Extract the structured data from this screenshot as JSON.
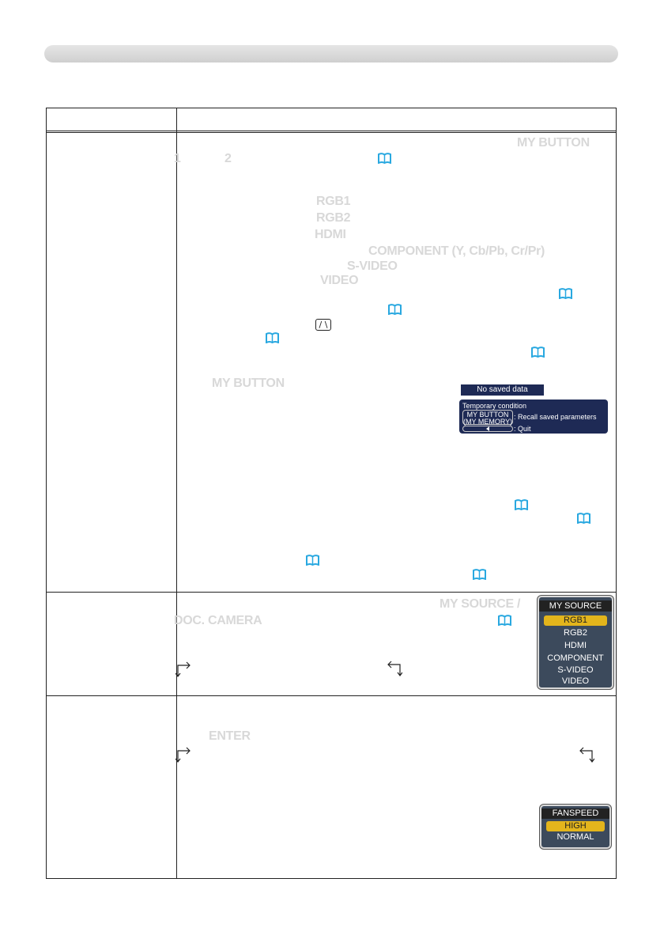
{
  "text": {
    "mybutton_head": "MY BUTTON",
    "num_1": "1",
    "num_2": "2",
    "rgb1": "RGB1",
    "rgb2": "RGB2",
    "hdmi": "HDMI",
    "component": "COMPONENT (Y, Cb/Pb, Cr/Pr)",
    "svideo": "S-VIDEO",
    "video": "VIDEO",
    "mybutton_2": "MY BUTTON",
    "mysource": "MY SOURCE /",
    "doccamera": "DOC. CAMERA",
    "enter": "ENTER"
  },
  "icons": {
    "book": "manual-reference-icon",
    "arrow_down": "down-arrow-icon",
    "arrow_up": "up-arrow-icon",
    "aspect": "aspect-button-icon"
  },
  "osd_memory": {
    "bar": "No saved data",
    "title": "Temporary condition",
    "btn1_line1": "MY BUTTON",
    "btn1_line2": "(MY MEMORY)",
    "btn1_desc": ": Recall saved parameters",
    "btn2_desc": ": Quit"
  },
  "menu_source": {
    "title": "MY SOURCE",
    "items": [
      "RGB1",
      "RGB2",
      "HDMI",
      "COMPONENT",
      "S-VIDEO",
      "VIDEO"
    ],
    "selected": "RGB1"
  },
  "menu_fan": {
    "title": "FANSPEED",
    "items": [
      "HIGH",
      "NORMAL"
    ],
    "selected": "HIGH"
  },
  "colors": {
    "accent_blue": "#29a8e0",
    "osd_navy": "#1e2a55",
    "highlight_gold": "#e3b51c"
  }
}
